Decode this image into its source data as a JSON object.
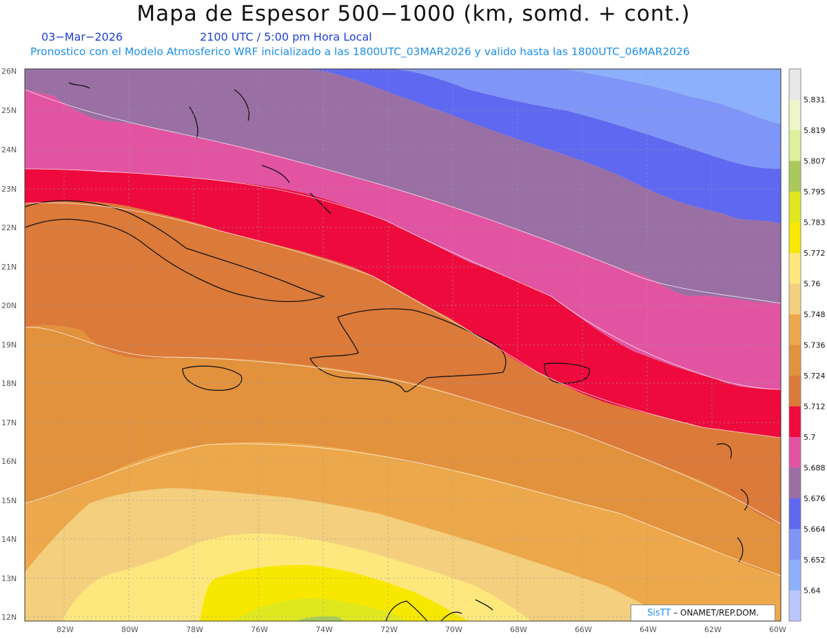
{
  "header": {
    "title": "Mapa de Espesor 500−1000 (km, somd. + cont.)",
    "date": "03−Mar−2026",
    "time": "2100 UTC / 5:00 pm Hora Local",
    "description": "Pronostico con el Modelo Atmosferico WRF inicializado a las 1800UTC_03MAR2026 y valido hasta las  1800UTC_06MAR2026"
  },
  "map": {
    "lat_labels": [
      "26N",
      "25N",
      "24N",
      "23N",
      "22N",
      "21N",
      "20N",
      "19N",
      "18N",
      "17N",
      "16N",
      "15N",
      "14N",
      "13N",
      "12N"
    ],
    "lon_labels": [
      "82W",
      "80W",
      "78W",
      "76W",
      "74W",
      "72W",
      "70W",
      "68W",
      "66W",
      "64W",
      "62W",
      "60W"
    ]
  },
  "colorbar": {
    "levels": [
      "5.831",
      "5.819",
      "5.807",
      "5.795",
      "5.783",
      "5.772",
      "5.76",
      "5.748",
      "5.736",
      "5.724",
      "5.712",
      "5.7",
      "5.688",
      "5.676",
      "5.664",
      "5.652",
      "5.64"
    ],
    "colors": [
      "#e8e8e8",
      "#eef5c8",
      "#dff09a",
      "#a9c95a",
      "#dfe81e",
      "#f8e800",
      "#fee87e",
      "#f3cf7e",
      "#eda84b",
      "#e2913d",
      "#dc7a3a",
      "#ee0a3d",
      "#e254a2",
      "#9a6fa4",
      "#5f68f0",
      "#7f96f8",
      "#8cb0fc",
      "#b9c7fc"
    ]
  },
  "credit": {
    "logo": "SisTT",
    "text": " – ONAMET/REP.DOM."
  }
}
